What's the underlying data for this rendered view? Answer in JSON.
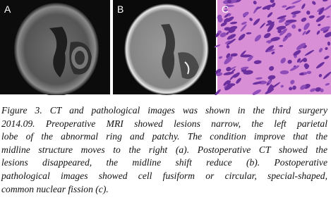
{
  "panels": [
    {
      "label": "A"
    },
    {
      "label": "B"
    },
    {
      "label": "C"
    }
  ],
  "caption": {
    "label": "Figure 3.",
    "lines": [
      " CT and pathological images was shown in the third surgery",
      "2014.09. Preoperative MRI showed lesions narrow, the left parietal",
      "lobe of the abnormal ring and patchy. The condition improve that the",
      "midline structure moves to the right (a). Postoperative CT showed the",
      "lesions disappeared, the midline shift reduce (b). Postoperative",
      "pathological images showed cell fusiform or circular, special-shaped,",
      "common nuclear fission (c)."
    ]
  }
}
